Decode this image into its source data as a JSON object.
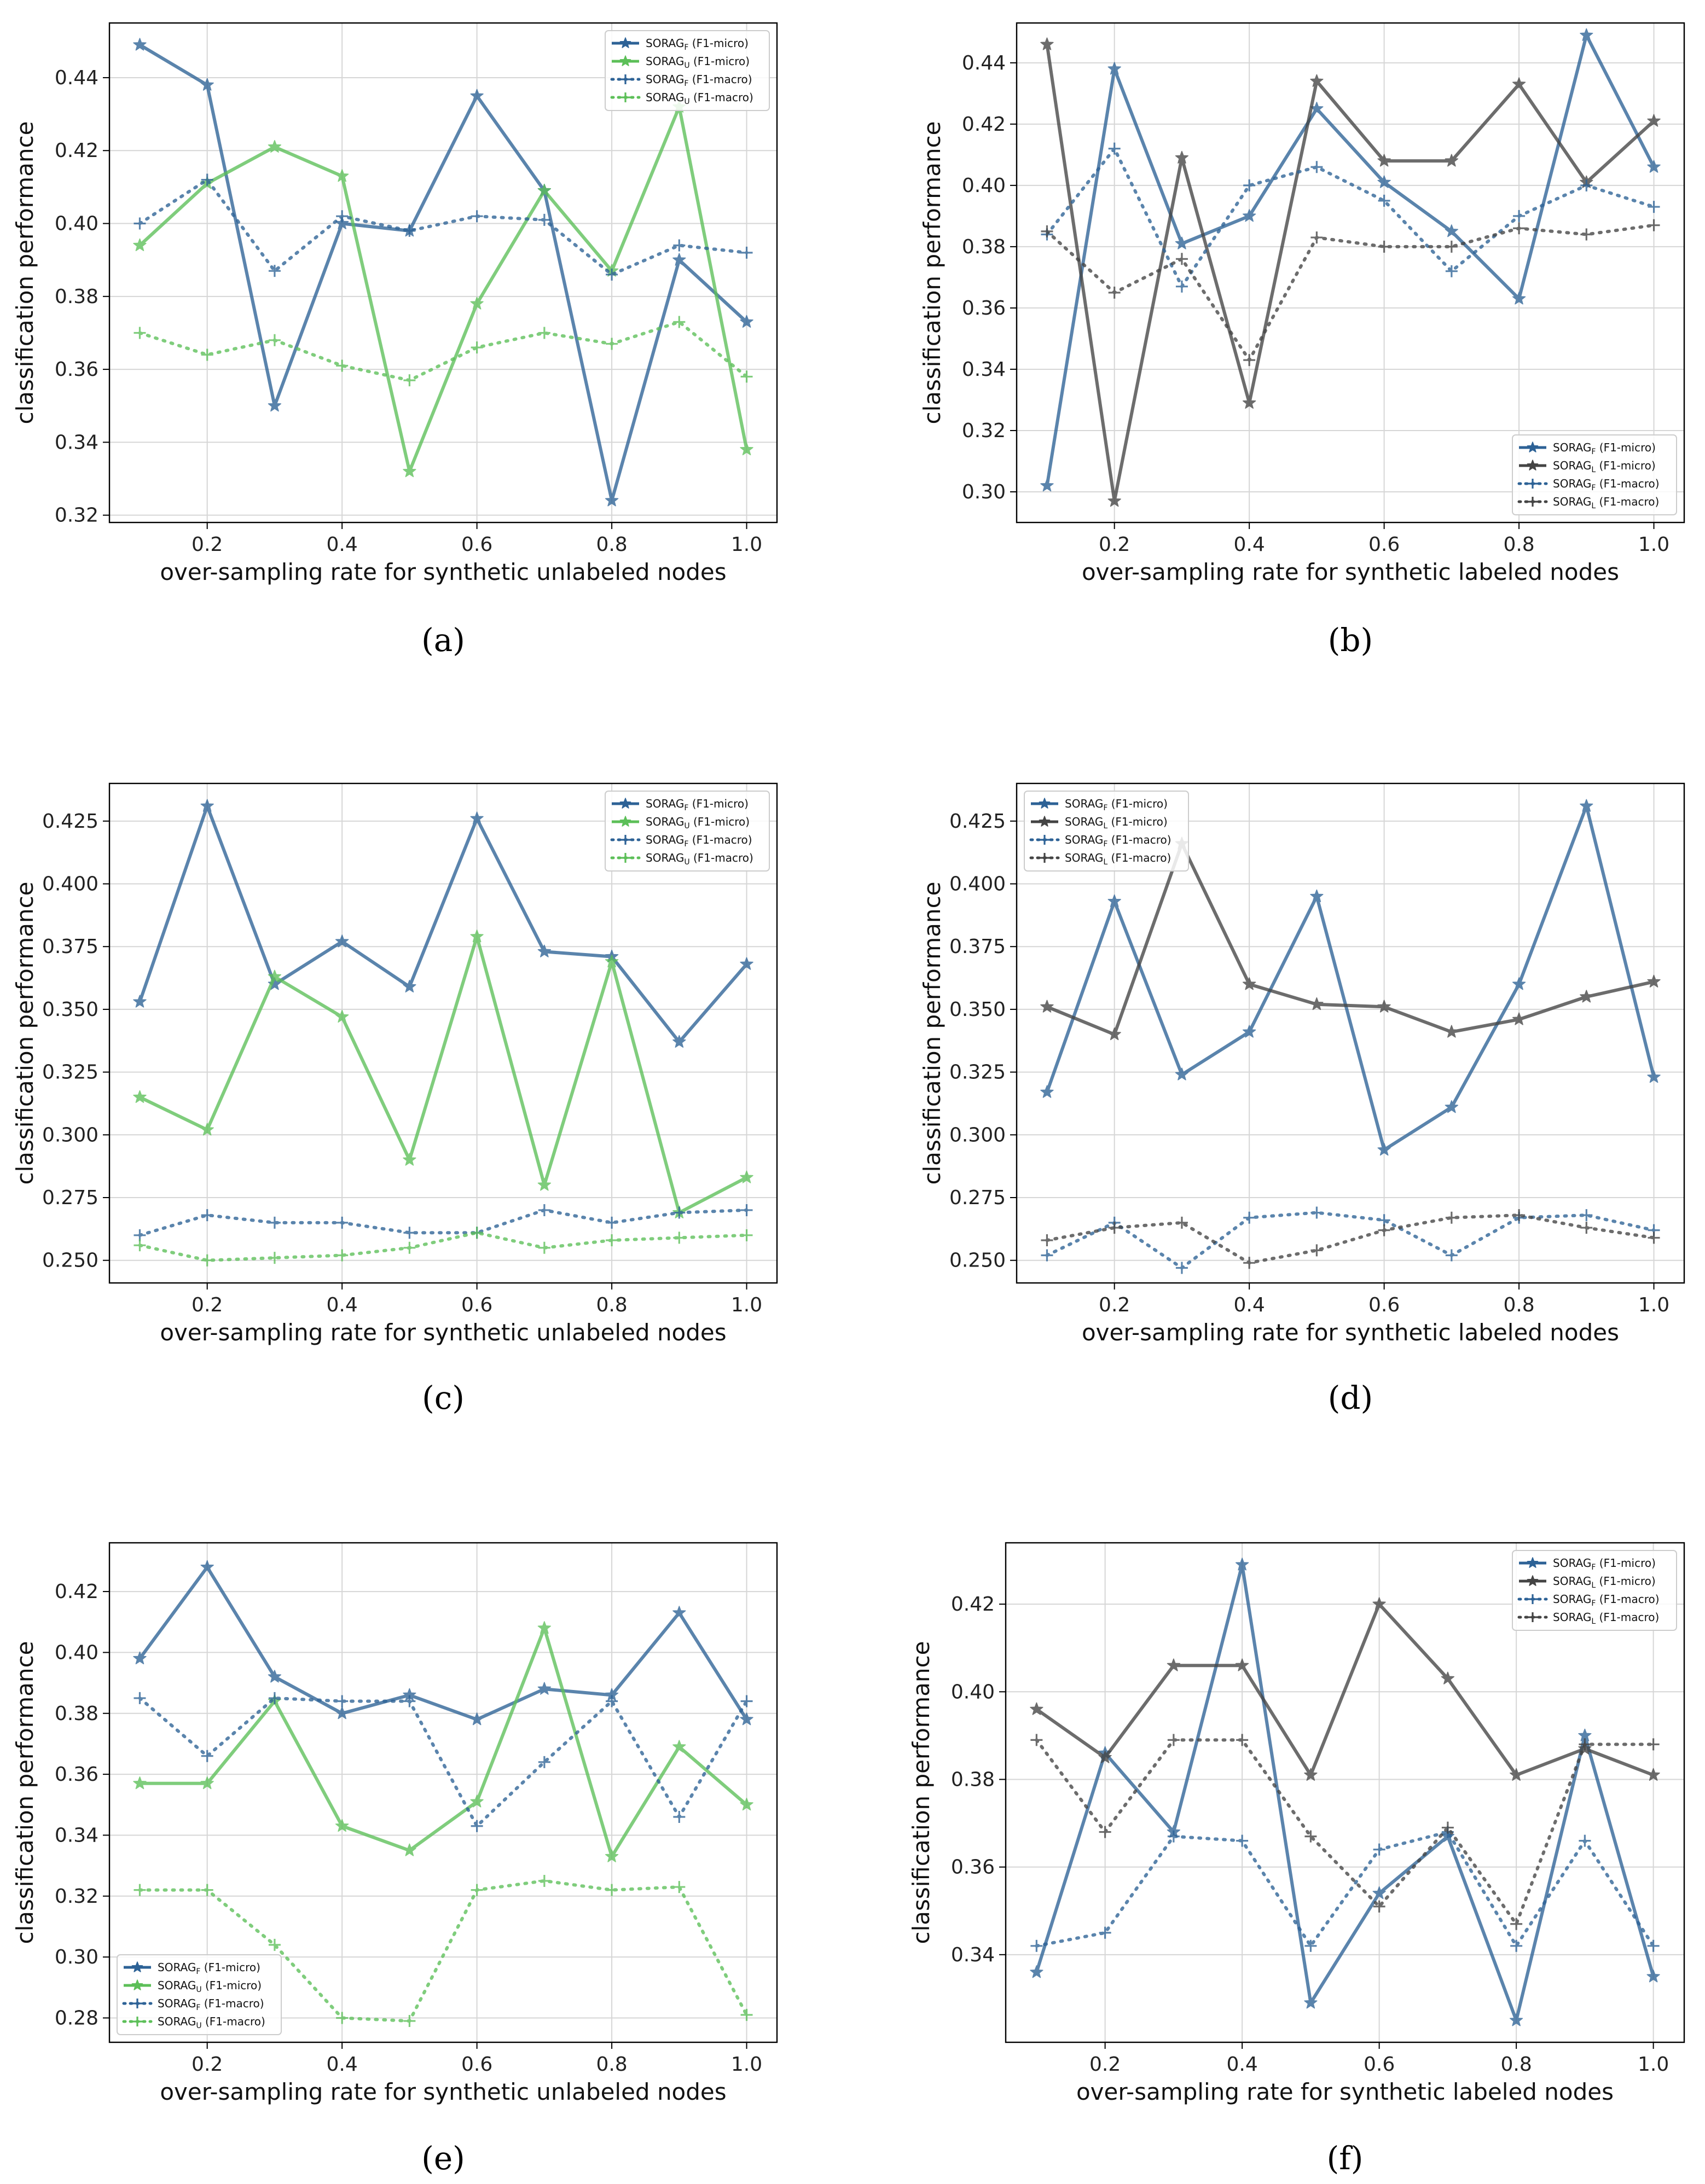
{
  "colors": {
    "blue": "#2d6296",
    "green": "#5cbf58",
    "gray": "#444444",
    "grid": "#d6d6d6"
  },
  "chart_data": [
    {
      "type": "line",
      "panel": "a",
      "caption": "(a)",
      "xlabel": "over-sampling rate for synthetic unlabeled nodes",
      "ylabel": "classification performance",
      "x": [
        0.1,
        0.2,
        0.3,
        0.4,
        0.5,
        0.6,
        0.7,
        0.8,
        0.9,
        1.0
      ],
      "xticks": [
        "0.2",
        "0.4",
        "0.6",
        "0.8",
        "1.0"
      ],
      "yticks": [
        "0.32",
        "0.34",
        "0.36",
        "0.38",
        "0.40",
        "0.42",
        "0.44"
      ],
      "ylim": [
        0.318,
        0.455
      ],
      "legend_loc": "upper right",
      "series": [
        {
          "name": "SORAG_F (F1-micro)",
          "label_base": "SORAG",
          "label_sub": "F",
          "label_tail": " (F1-micro)",
          "color": "blue",
          "style": "solid",
          "marker": "star",
          "values": [
            0.449,
            0.438,
            0.35,
            0.4,
            0.398,
            0.435,
            0.409,
            0.324,
            0.39,
            0.373
          ]
        },
        {
          "name": "SORAG_U (F1-micro)",
          "label_base": "SORAG",
          "label_sub": "U",
          "label_tail": " (F1-micro)",
          "color": "green",
          "style": "solid",
          "marker": "star",
          "values": [
            0.394,
            0.411,
            0.421,
            0.413,
            0.332,
            0.378,
            0.409,
            0.387,
            0.432,
            0.338
          ]
        },
        {
          "name": "SORAG_F (F1-macro)",
          "label_base": "SORAG",
          "label_sub": "F",
          "label_tail": " (F1-macro)",
          "color": "blue",
          "style": "dotted",
          "marker": "plus",
          "values": [
            0.4,
            0.412,
            0.387,
            0.402,
            0.398,
            0.402,
            0.401,
            0.386,
            0.394,
            0.392
          ]
        },
        {
          "name": "SORAG_U (F1-macro)",
          "label_base": "SORAG",
          "label_sub": "U",
          "label_tail": " (F1-macro)",
          "color": "green",
          "style": "dotted",
          "marker": "plus",
          "values": [
            0.37,
            0.364,
            0.368,
            0.361,
            0.357,
            0.366,
            0.37,
            0.367,
            0.373,
            0.358
          ]
        }
      ]
    },
    {
      "type": "line",
      "panel": "b",
      "caption": "(b)",
      "xlabel": "over-sampling rate for synthetic labeled nodes",
      "ylabel": "classification performance",
      "x": [
        0.1,
        0.2,
        0.3,
        0.4,
        0.5,
        0.6,
        0.7,
        0.8,
        0.9,
        1.0
      ],
      "xticks": [
        "0.2",
        "0.4",
        "0.6",
        "0.8",
        "1.0"
      ],
      "yticks": [
        "0.30",
        "0.32",
        "0.34",
        "0.36",
        "0.38",
        "0.40",
        "0.42",
        "0.44"
      ],
      "ylim": [
        0.29,
        0.453
      ],
      "legend_loc": "lower right",
      "series": [
        {
          "name": "SORAG_F (F1-micro)",
          "label_base": "SORAG",
          "label_sub": "F",
          "label_tail": " (F1-micro)",
          "color": "blue",
          "style": "solid",
          "marker": "star",
          "values": [
            0.302,
            0.438,
            0.381,
            0.39,
            0.425,
            0.401,
            0.385,
            0.363,
            0.449,
            0.406
          ]
        },
        {
          "name": "SORAG_L (F1-micro)",
          "label_base": "SORAG",
          "label_sub": "L",
          "label_tail": " (F1-micro)",
          "color": "gray",
          "style": "solid",
          "marker": "star",
          "values": [
            0.446,
            0.297,
            0.409,
            0.329,
            0.434,
            0.408,
            0.408,
            0.433,
            0.401,
            0.421
          ]
        },
        {
          "name": "SORAG_F (F1-macro)",
          "label_base": "SORAG",
          "label_sub": "F",
          "label_tail": " (F1-macro)",
          "color": "blue",
          "style": "dotted",
          "marker": "plus",
          "values": [
            0.384,
            0.412,
            0.367,
            0.4,
            0.406,
            0.395,
            0.372,
            0.39,
            0.4,
            0.393
          ]
        },
        {
          "name": "SORAG_L (F1-macro)",
          "label_base": "SORAG",
          "label_sub": "L",
          "label_tail": " (F1-macro)",
          "color": "gray",
          "style": "dotted",
          "marker": "plus",
          "values": [
            0.385,
            0.365,
            0.376,
            0.343,
            0.383,
            0.38,
            0.38,
            0.386,
            0.384,
            0.387
          ]
        }
      ]
    },
    {
      "type": "line",
      "panel": "c",
      "caption": "(c)",
      "xlabel": "over-sampling rate for synthetic unlabeled nodes",
      "ylabel": "classification performance",
      "x": [
        0.1,
        0.2,
        0.3,
        0.4,
        0.5,
        0.6,
        0.7,
        0.8,
        0.9,
        1.0
      ],
      "xticks": [
        "0.2",
        "0.4",
        "0.6",
        "0.8",
        "1.0"
      ],
      "yticks": [
        "0.250",
        "0.275",
        "0.300",
        "0.325",
        "0.350",
        "0.375",
        "0.400",
        "0.425"
      ],
      "ylim": [
        0.241,
        0.44
      ],
      "legend_loc": "upper right",
      "series": [
        {
          "name": "SORAG_F (F1-micro)",
          "label_base": "SORAG",
          "label_sub": "F",
          "label_tail": " (F1-micro)",
          "color": "blue",
          "style": "solid",
          "marker": "star",
          "values": [
            0.353,
            0.431,
            0.36,
            0.377,
            0.359,
            0.426,
            0.373,
            0.371,
            0.337,
            0.368
          ]
        },
        {
          "name": "SORAG_U (F1-micro)",
          "label_base": "SORAG",
          "label_sub": "U",
          "label_tail": " (F1-micro)",
          "color": "green",
          "style": "solid",
          "marker": "star",
          "values": [
            0.315,
            0.302,
            0.363,
            0.347,
            0.29,
            0.379,
            0.28,
            0.369,
            0.269,
            0.283
          ]
        },
        {
          "name": "SORAG_F (F1-macro)",
          "label_base": "SORAG",
          "label_sub": "F",
          "label_tail": " (F1-macro)",
          "color": "blue",
          "style": "dotted",
          "marker": "plus",
          "values": [
            0.26,
            0.268,
            0.265,
            0.265,
            0.261,
            0.261,
            0.27,
            0.265,
            0.269,
            0.27
          ]
        },
        {
          "name": "SORAG_U (F1-macro)",
          "label_base": "SORAG",
          "label_sub": "U",
          "label_tail": " (F1-macro)",
          "color": "green",
          "style": "dotted",
          "marker": "plus",
          "values": [
            0.256,
            0.25,
            0.251,
            0.252,
            0.255,
            0.261,
            0.255,
            0.258,
            0.259,
            0.26
          ]
        }
      ]
    },
    {
      "type": "line",
      "panel": "d",
      "caption": "(d)",
      "xlabel": "over-sampling rate for synthetic labeled nodes",
      "ylabel": "classification performance",
      "x": [
        0.1,
        0.2,
        0.3,
        0.4,
        0.5,
        0.6,
        0.7,
        0.8,
        0.9,
        1.0
      ],
      "xticks": [
        "0.2",
        "0.4",
        "0.6",
        "0.8",
        "1.0"
      ],
      "yticks": [
        "0.250",
        "0.275",
        "0.300",
        "0.325",
        "0.350",
        "0.375",
        "0.400",
        "0.425"
      ],
      "ylim": [
        0.241,
        0.44
      ],
      "legend_loc": "upper left",
      "series": [
        {
          "name": "SORAG_F (F1-micro)",
          "label_base": "SORAG",
          "label_sub": "F",
          "label_tail": " (F1-micro)",
          "color": "blue",
          "style": "solid",
          "marker": "star",
          "values": [
            0.317,
            0.393,
            0.324,
            0.341,
            0.395,
            0.294,
            0.311,
            0.36,
            0.431,
            0.323
          ]
        },
        {
          "name": "SORAG_L (F1-micro)",
          "label_base": "SORAG",
          "label_sub": "L",
          "label_tail": " (F1-micro)",
          "color": "gray",
          "style": "solid",
          "marker": "star",
          "values": [
            0.351,
            0.34,
            0.416,
            0.36,
            0.352,
            0.351,
            0.341,
            0.346,
            0.355,
            0.361
          ]
        },
        {
          "name": "SORAG_F (F1-macro)",
          "label_base": "SORAG",
          "label_sub": "F",
          "label_tail": " (F1-macro)",
          "color": "blue",
          "style": "dotted",
          "marker": "plus",
          "values": [
            0.252,
            0.265,
            0.247,
            0.267,
            0.269,
            0.266,
            0.252,
            0.267,
            0.268,
            0.262
          ]
        },
        {
          "name": "SORAG_L (F1-macro)",
          "label_base": "SORAG",
          "label_sub": "L",
          "label_tail": " (F1-macro)",
          "color": "gray",
          "style": "dotted",
          "marker": "plus",
          "values": [
            0.258,
            0.263,
            0.265,
            0.249,
            0.254,
            0.262,
            0.267,
            0.268,
            0.263,
            0.259
          ]
        }
      ]
    },
    {
      "type": "line",
      "panel": "e",
      "caption": "(e)",
      "xlabel": "over-sampling rate for synthetic unlabeled nodes",
      "ylabel": "classification performance",
      "x": [
        0.1,
        0.2,
        0.3,
        0.4,
        0.5,
        0.6,
        0.7,
        0.8,
        0.9,
        1.0
      ],
      "xticks": [
        "0.2",
        "0.4",
        "0.6",
        "0.8",
        "1.0"
      ],
      "yticks": [
        "0.28",
        "0.30",
        "0.32",
        "0.34",
        "0.36",
        "0.38",
        "0.40",
        "0.42"
      ],
      "ylim": [
        0.272,
        0.436
      ],
      "legend_loc": "lower left",
      "series": [
        {
          "name": "SORAG_F (F1-micro)",
          "label_base": "SORAG",
          "label_sub": "F",
          "label_tail": " (F1-micro)",
          "color": "blue",
          "style": "solid",
          "marker": "star",
          "values": [
            0.398,
            0.428,
            0.392,
            0.38,
            0.386,
            0.378,
            0.388,
            0.386,
            0.413,
            0.378
          ]
        },
        {
          "name": "SORAG_U (F1-micro)",
          "label_base": "SORAG",
          "label_sub": "U",
          "label_tail": " (F1-micro)",
          "color": "green",
          "style": "solid",
          "marker": "star",
          "values": [
            0.357,
            0.357,
            0.384,
            0.343,
            0.335,
            0.351,
            0.408,
            0.333,
            0.369,
            0.35
          ]
        },
        {
          "name": "SORAG_F (F1-macro)",
          "label_base": "SORAG",
          "label_sub": "F",
          "label_tail": " (F1-macro)",
          "color": "blue",
          "style": "dotted",
          "marker": "plus",
          "values": [
            0.385,
            0.366,
            0.385,
            0.384,
            0.384,
            0.343,
            0.364,
            0.384,
            0.346,
            0.384
          ]
        },
        {
          "name": "SORAG_U (F1-macro)",
          "label_base": "SORAG",
          "label_sub": "U",
          "label_tail": " (F1-macro)",
          "color": "green",
          "style": "dotted",
          "marker": "plus",
          "values": [
            0.322,
            0.322,
            0.304,
            0.28,
            0.279,
            0.322,
            0.325,
            0.322,
            0.323,
            0.281
          ]
        }
      ]
    },
    {
      "type": "line",
      "panel": "f",
      "caption": "(f)",
      "xlabel": "over-sampling rate for synthetic labeled nodes",
      "ylabel": "classification performance",
      "x": [
        0.1,
        0.2,
        0.3,
        0.4,
        0.5,
        0.6,
        0.7,
        0.8,
        0.9,
        1.0
      ],
      "xticks": [
        "0.2",
        "0.4",
        "0.6",
        "0.8",
        "1.0"
      ],
      "yticks": [
        "0.34",
        "0.36",
        "0.38",
        "0.40",
        "0.42"
      ],
      "ylim": [
        0.32,
        0.434
      ],
      "legend_loc": "upper right",
      "series": [
        {
          "name": "SORAG_F (F1-micro)",
          "label_base": "SORAG",
          "label_sub": "F",
          "label_tail": " (F1-micro)",
          "color": "blue",
          "style": "solid",
          "marker": "star",
          "values": [
            0.336,
            0.386,
            0.368,
            0.429,
            0.329,
            0.354,
            0.367,
            0.325,
            0.39,
            0.335
          ]
        },
        {
          "name": "SORAG_L (F1-micro)",
          "label_base": "SORAG",
          "label_sub": "L",
          "label_tail": " (F1-micro)",
          "color": "gray",
          "style": "solid",
          "marker": "star",
          "values": [
            0.396,
            0.385,
            0.406,
            0.406,
            0.381,
            0.42,
            0.403,
            0.381,
            0.387,
            0.381
          ]
        },
        {
          "name": "SORAG_F (F1-macro)",
          "label_base": "SORAG",
          "label_sub": "F",
          "label_tail": " (F1-macro)",
          "color": "blue",
          "style": "dotted",
          "marker": "plus",
          "values": [
            0.342,
            0.345,
            0.367,
            0.366,
            0.342,
            0.364,
            0.368,
            0.342,
            0.366,
            0.342
          ]
        },
        {
          "name": "SORAG_L (F1-macro)",
          "label_base": "SORAG",
          "label_sub": "L",
          "label_tail": " (F1-macro)",
          "color": "gray",
          "style": "dotted",
          "marker": "plus",
          "values": [
            0.389,
            0.368,
            0.389,
            0.389,
            0.367,
            0.351,
            0.369,
            0.347,
            0.388,
            0.388
          ]
        }
      ]
    }
  ]
}
